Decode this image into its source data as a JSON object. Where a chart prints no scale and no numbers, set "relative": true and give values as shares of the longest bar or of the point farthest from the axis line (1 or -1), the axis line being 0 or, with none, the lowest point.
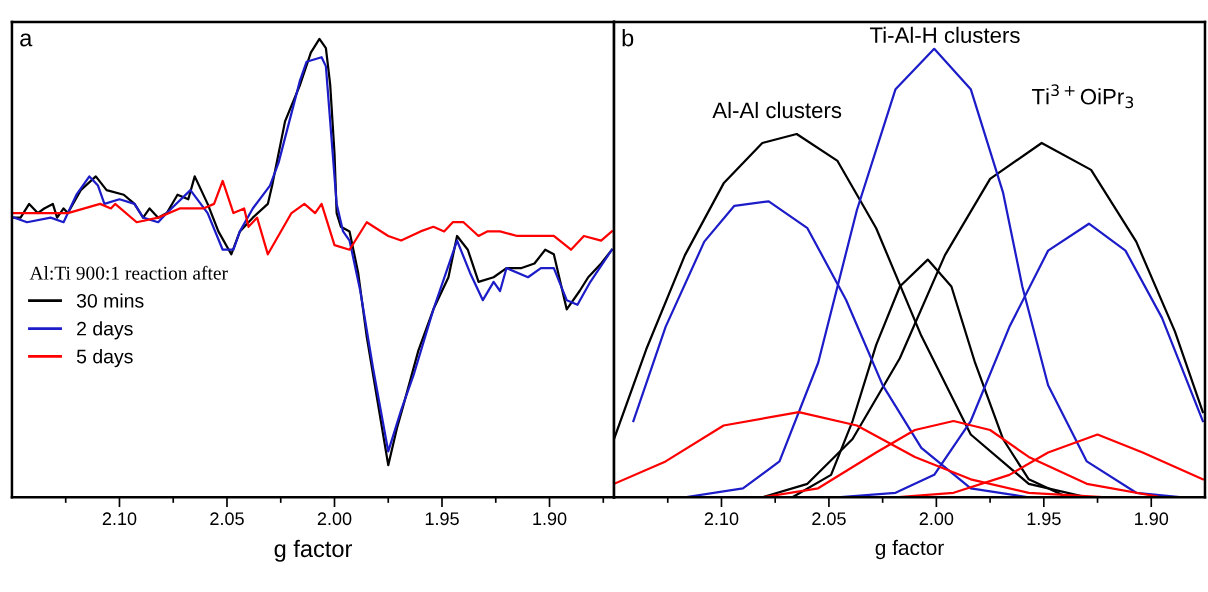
{
  "chart_data": [
    {
      "type": "line",
      "title": "a",
      "xlabel": "g factor",
      "relative": true,
      "legend_title": "Al:Ti 900:1 reaction after",
      "legend": "center left",
      "tick_labels": "x",
      "xlim": [
        2.15,
        1.87
      ],
      "xticks": [
        {
          "value": 2.1,
          "label": "2.10"
        },
        {
          "value": 2.05,
          "label": "2.05"
        },
        {
          "value": 2.0,
          "label": "2.00"
        },
        {
          "value": 1.95,
          "label": "1.95"
        },
        {
          "value": 1.9,
          "label": "1.90"
        },
        {
          "value": 2.125,
          "label": null
        },
        {
          "value": 2.075,
          "label": null
        },
        {
          "value": 2.025,
          "label": null
        },
        {
          "value": 1.975,
          "label": null
        },
        {
          "value": 1.925,
          "label": null
        },
        {
          "value": 1.875,
          "label": null
        }
      ],
      "series": [
        {
          "name": "30 mins",
          "color": "#000000",
          "x": [
            2.149,
            2.146,
            2.142,
            2.138,
            2.135,
            2.131,
            2.129,
            2.126,
            2.124,
            2.118,
            2.111,
            2.106,
            2.098,
            2.093,
            2.089,
            2.086,
            2.082,
            2.078,
            2.073,
            2.068,
            2.065,
            2.059,
            2.054,
            2.048,
            2.044,
            2.038,
            2.031,
            2.029,
            2.023,
            2.016,
            2.011,
            2.007,
            2.004,
            2.002,
            2.0,
            1.999,
            1.997,
            1.993,
            1.989,
            1.985,
            1.98,
            1.975,
            1.971,
            1.968,
            1.961,
            1.954,
            1.947,
            1.943,
            1.938,
            1.933,
            1.926,
            1.92,
            1.913,
            1.907,
            1.902,
            1.898,
            1.892,
            1.886,
            1.882,
            1.876,
            1.871
          ],
          "values": [
            0.61,
            0.61,
            0.64,
            0.62,
            0.63,
            0.64,
            0.61,
            0.63,
            0.62,
            0.67,
            0.7,
            0.67,
            0.66,
            0.64,
            0.61,
            0.63,
            0.61,
            0.62,
            0.66,
            0.65,
            0.7,
            0.64,
            0.58,
            0.53,
            0.58,
            0.61,
            0.64,
            0.68,
            0.82,
            0.9,
            0.97,
            1.0,
            0.98,
            0.9,
            0.75,
            0.62,
            0.59,
            0.58,
            0.49,
            0.35,
            0.21,
            0.07,
            0.15,
            0.2,
            0.32,
            0.41,
            0.48,
            0.57,
            0.54,
            0.47,
            0.48,
            0.5,
            0.5,
            0.51,
            0.54,
            0.53,
            0.41,
            0.45,
            0.48,
            0.51,
            0.54
          ]
        },
        {
          "name": "2 days",
          "color": "#1c1cc8",
          "x": [
            2.149,
            2.143,
            2.132,
            2.126,
            2.12,
            2.114,
            2.11,
            2.107,
            2.1,
            2.093,
            2.089,
            2.082,
            2.078,
            2.067,
            2.059,
            2.052,
            2.047,
            2.044,
            2.038,
            2.03,
            2.026,
            2.016,
            2.013,
            2.006,
            2.004,
            2.002,
            1.999,
            1.996,
            1.993,
            1.988,
            1.982,
            1.975,
            1.969,
            1.963,
            1.954,
            1.943,
            1.937,
            1.931,
            1.926,
            1.923,
            1.92,
            1.91,
            1.904,
            1.898,
            1.892,
            1.887,
            1.881,
            1.871
          ],
          "values": [
            0.61,
            0.6,
            0.61,
            0.6,
            0.66,
            0.7,
            0.68,
            0.64,
            0.65,
            0.64,
            0.61,
            0.6,
            0.62,
            0.67,
            0.62,
            0.54,
            0.54,
            0.58,
            0.63,
            0.68,
            0.73,
            0.91,
            0.95,
            0.96,
            0.94,
            0.82,
            0.64,
            0.58,
            0.56,
            0.45,
            0.28,
            0.1,
            0.19,
            0.27,
            0.41,
            0.56,
            0.49,
            0.43,
            0.47,
            0.45,
            0.5,
            0.48,
            0.5,
            0.5,
            0.43,
            0.42,
            0.47,
            0.54
          ]
        },
        {
          "name": "5 days",
          "color": "#ff0000",
          "x": [
            2.149,
            2.138,
            2.124,
            2.109,
            2.104,
            2.102,
            2.092,
            2.082,
            2.072,
            2.061,
            2.056,
            2.052,
            2.047,
            2.042,
            2.04,
            2.036,
            2.031,
            2.02,
            2.014,
            2.009,
            2.006,
            2.0,
            1.993,
            1.985,
            1.975,
            1.969,
            1.96,
            1.954,
            1.949,
            1.945,
            1.94,
            1.933,
            1.929,
            1.923,
            1.915,
            1.907,
            1.898,
            1.89,
            1.884,
            1.876,
            1.871
          ],
          "values": [
            0.62,
            0.62,
            0.62,
            0.64,
            0.63,
            0.64,
            0.6,
            0.61,
            0.63,
            0.63,
            0.64,
            0.69,
            0.62,
            0.63,
            0.59,
            0.61,
            0.53,
            0.62,
            0.64,
            0.62,
            0.64,
            0.55,
            0.54,
            0.6,
            0.57,
            0.56,
            0.58,
            0.59,
            0.58,
            0.6,
            0.6,
            0.57,
            0.58,
            0.58,
            0.57,
            0.57,
            0.57,
            0.54,
            0.57,
            0.56,
            0.58
          ]
        }
      ]
    },
    {
      "type": "line",
      "title": "b",
      "xlabel": "g factor",
      "relative": true,
      "tick_labels": "x",
      "xlim": [
        2.15,
        1.875
      ],
      "xticks": [
        {
          "value": 2.1,
          "label": "2.10"
        },
        {
          "value": 2.05,
          "label": "2.05"
        },
        {
          "value": 2.0,
          "label": "2.00"
        },
        {
          "value": 1.95,
          "label": "1.95"
        },
        {
          "value": 1.9,
          "label": "1.90"
        },
        {
          "value": 2.125,
          "label": null
        },
        {
          "value": 2.075,
          "label": null
        },
        {
          "value": 2.025,
          "label": null
        },
        {
          "value": 1.975,
          "label": null
        },
        {
          "value": 1.925,
          "label": null
        }
      ],
      "annotations": [
        "Al-Al clusters",
        "Ti-Al-H clusters",
        "Ti$^{3+}$OiPr$_{3}$"
      ],
      "series": [
        {
          "color": "#000000",
          "x": [
            2.15,
            2.135,
            2.117,
            2.099,
            2.081,
            2.065,
            2.046,
            2.028,
            2.007,
            1.984,
            1.957,
            1.93,
            1.903
          ],
          "values": [
            0.13,
            0.33,
            0.54,
            0.7,
            0.79,
            0.81,
            0.75,
            0.6,
            0.36,
            0.14,
            0.03,
            0.0,
            0.0
          ]
        },
        {
          "color": "#000000",
          "x": [
            2.099,
            2.067,
            2.049,
            2.039,
            2.028,
            2.017,
            2.004,
            1.993,
            1.982,
            1.969,
            1.957,
            1.939,
            1.912
          ],
          "values": [
            0.0,
            0.0,
            0.05,
            0.17,
            0.34,
            0.47,
            0.53,
            0.47,
            0.3,
            0.13,
            0.04,
            0.0,
            0.0
          ]
        },
        {
          "color": "#000000",
          "x": [
            2.108,
            2.081,
            2.06,
            2.039,
            2.017,
            1.996,
            1.975,
            1.951,
            1.928,
            1.907,
            1.889,
            1.876
          ],
          "values": [
            0.0,
            0.0,
            0.03,
            0.13,
            0.31,
            0.54,
            0.71,
            0.79,
            0.73,
            0.57,
            0.37,
            0.19
          ]
        },
        {
          "color": "#1c1cc8",
          "x": [
            2.141,
            2.126,
            2.108,
            2.094,
            2.078,
            2.06,
            2.042,
            2.025,
            2.007,
            1.984,
            1.957,
            1.921
          ],
          "values": [
            0.17,
            0.38,
            0.57,
            0.65,
            0.66,
            0.6,
            0.44,
            0.25,
            0.11,
            0.02,
            0.0,
            0.0
          ]
        },
        {
          "color": "#1c1cc8",
          "x": [
            2.117,
            2.09,
            2.073,
            2.055,
            2.037,
            2.019,
            2.001,
            1.984,
            1.969,
            1.96,
            1.948,
            1.93,
            1.907,
            1.886
          ],
          "values": [
            0.0,
            0.02,
            0.08,
            0.3,
            0.64,
            0.91,
            1.0,
            0.91,
            0.68,
            0.47,
            0.25,
            0.08,
            0.01,
            0.0
          ]
        },
        {
          "color": "#1c1cc8",
          "x": [
            2.046,
            2.019,
            2.001,
            1.984,
            1.966,
            1.948,
            1.929,
            1.912,
            1.895,
            1.876
          ],
          "values": [
            0.0,
            0.01,
            0.05,
            0.17,
            0.38,
            0.55,
            0.61,
            0.55,
            0.4,
            0.17
          ]
        },
        {
          "color": "#ff0000",
          "x": [
            2.15,
            2.126,
            2.099,
            2.064,
            2.037,
            2.01,
            1.984,
            1.957,
            1.921
          ],
          "values": [
            0.03,
            0.08,
            0.16,
            0.19,
            0.16,
            0.09,
            0.04,
            0.01,
            0.0
          ]
        },
        {
          "color": "#ff0000",
          "x": [
            2.081,
            2.055,
            2.028,
            2.01,
            1.992,
            1.975,
            1.957,
            1.93,
            1.895
          ],
          "values": [
            0.0,
            0.02,
            0.1,
            0.15,
            0.17,
            0.15,
            0.09,
            0.03,
            0.0
          ]
        },
        {
          "color": "#ff0000",
          "x": [
            2.019,
            1.992,
            1.966,
            1.948,
            1.925,
            1.904,
            1.876
          ],
          "values": [
            0.0,
            0.01,
            0.05,
            0.1,
            0.14,
            0.1,
            0.04
          ]
        }
      ]
    }
  ]
}
